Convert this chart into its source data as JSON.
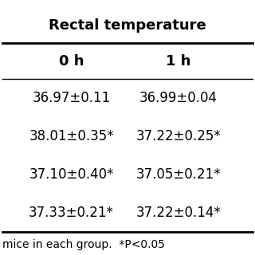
{
  "title": "Rectal temperature",
  "col_headers": [
    "0 h",
    "1 h"
  ],
  "rows": [
    [
      "36.97±0.11",
      "36.99±0.04"
    ],
    [
      "38.01±0.35*",
      "37.22±0.25*"
    ],
    [
      "37.10±0.40*",
      "37.05±0.21*"
    ],
    [
      "37.33±0.21*",
      "37.22±0.14*"
    ]
  ],
  "footer": "mice in each group.  *P<0.05",
  "bg_color": "#ffffff",
  "text_color": "#000000",
  "title_fontsize": 13,
  "header_fontsize": 13,
  "cell_fontsize": 12,
  "footer_fontsize": 10
}
